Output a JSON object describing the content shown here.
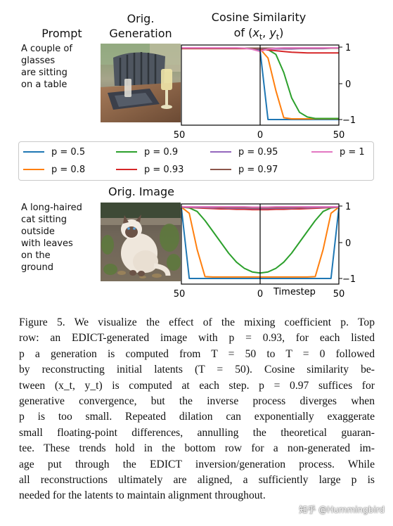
{
  "figure": {
    "row1": {
      "header_prompt": "Prompt",
      "header_image_line1": "Orig.",
      "header_image_line2": "Generation",
      "header_plot_line1": "Cosine Similarity",
      "header_plot_line2": "of (x_t, y_t)",
      "prompt_lines": [
        "A couple of",
        "glasses",
        "are sitting",
        "on a table"
      ],
      "image_icon": "photo-glasses-on-table"
    },
    "row2": {
      "header_image": "Orig. Image",
      "prompt_lines": [
        "A long-haired",
        "cat sitting",
        "outside",
        "with leaves",
        "on the",
        "ground"
      ],
      "image_icon": "photo-long-haired-cat",
      "xlabel": "Timestep"
    },
    "legend": [
      {
        "label": "p = 0.5",
        "color": "#1f77b4"
      },
      {
        "label": "p = 0.9",
        "color": "#2ca02c"
      },
      {
        "label": "p = 0.95",
        "color": "#9467bd"
      },
      {
        "label": "p = 1",
        "color": "#e377c2"
      },
      {
        "label": "p = 0.8",
        "color": "#ff7f0e"
      },
      {
        "label": "p = 0.93",
        "color": "#d62728"
      },
      {
        "label": "p = 0.97",
        "color": "#8c564b"
      }
    ]
  },
  "chart_data": [
    {
      "type": "line",
      "title": "Cosine Similarity of (x_t, y_t)",
      "xlabel": "",
      "ylabel": "",
      "xticks": [
        "50",
        "0",
        "50"
      ],
      "yticks": [
        "1",
        "0",
        "−1"
      ],
      "ylim": [
        -1.1,
        1.05
      ],
      "x": [
        0,
        5,
        10,
        15,
        20,
        25,
        30,
        35,
        40,
        45,
        50,
        55,
        60,
        65,
        70,
        75,
        80,
        85,
        90,
        95,
        100
      ],
      "series": [
        {
          "name": "p = 0.5",
          "color": "#1f77b4",
          "values": [
            0.97,
            0.97,
            0.97,
            0.97,
            0.97,
            0.97,
            0.97,
            0.97,
            0.97,
            0.97,
            0.9,
            -1.0,
            -1.0,
            -1.0,
            -1.0,
            -1.0,
            -1.0,
            -1.0,
            -1.0,
            -1.0,
            -1.0
          ]
        },
        {
          "name": "p = 0.8",
          "color": "#ff7f0e",
          "values": [
            0.97,
            0.97,
            0.97,
            0.97,
            0.97,
            0.97,
            0.97,
            0.97,
            0.97,
            0.97,
            0.95,
            0.7,
            -0.2,
            -0.95,
            -0.98,
            -0.98,
            -0.98,
            -0.98,
            -0.98,
            -0.98,
            -0.98
          ]
        },
        {
          "name": "p = 0.9",
          "color": "#2ca02c",
          "values": [
            0.97,
            0.97,
            0.97,
            0.97,
            0.97,
            0.97,
            0.97,
            0.97,
            0.97,
            0.97,
            0.96,
            0.93,
            0.8,
            0.3,
            -0.4,
            -0.8,
            -0.93,
            -0.97,
            -0.97,
            -0.97,
            -0.97
          ]
        },
        {
          "name": "p = 0.93",
          "color": "#d62728",
          "values": [
            0.96,
            0.96,
            0.96,
            0.96,
            0.96,
            0.96,
            0.96,
            0.96,
            0.96,
            0.96,
            0.95,
            0.92,
            0.9,
            0.88,
            0.86,
            0.85,
            0.84,
            0.84,
            0.84,
            0.84,
            0.84
          ]
        },
        {
          "name": "p = 0.95",
          "color": "#9467bd",
          "values": [
            0.97,
            0.97,
            0.97,
            0.97,
            0.97,
            0.97,
            0.97,
            0.97,
            0.97,
            0.97,
            0.96,
            0.95,
            0.95,
            0.95,
            0.95,
            0.96,
            0.96,
            0.96,
            0.96,
            0.97,
            0.97
          ]
        },
        {
          "name": "p = 0.97",
          "color": "#8c564b",
          "values": [
            0.97,
            0.97,
            0.97,
            0.97,
            0.97,
            0.97,
            0.97,
            0.97,
            0.97,
            0.97,
            0.97,
            0.97,
            0.97,
            0.97,
            0.97,
            0.97,
            0.97,
            0.97,
            0.97,
            0.97,
            0.97
          ]
        },
        {
          "name": "p = 1",
          "color": "#e377c2",
          "values": [
            0.98,
            0.98,
            0.98,
            0.98,
            0.98,
            0.98,
            0.98,
            0.98,
            0.97,
            0.94,
            0.88,
            0.95,
            0.97,
            0.98,
            0.98,
            0.98,
            0.98,
            0.98,
            0.98,
            0.98,
            0.98
          ]
        }
      ]
    },
    {
      "type": "line",
      "title": "",
      "xlabel": "Timestep",
      "ylabel": "",
      "xticks": [
        "50",
        "0",
        "50"
      ],
      "yticks": [
        "1",
        "0",
        "−1"
      ],
      "ylim": [
        -1.1,
        1.05
      ],
      "x": [
        0,
        5,
        10,
        15,
        20,
        25,
        30,
        35,
        40,
        45,
        50,
        55,
        60,
        65,
        70,
        75,
        80,
        85,
        90,
        95,
        100
      ],
      "series": [
        {
          "name": "p = 0.5",
          "color": "#1f77b4",
          "values": [
            0.95,
            -1.0,
            -1.0,
            -1.0,
            -1.0,
            -1.0,
            -1.0,
            -1.0,
            -1.0,
            -1.0,
            -1.0,
            -1.0,
            -1.0,
            -1.0,
            -1.0,
            -1.0,
            -1.0,
            -1.0,
            -1.0,
            -1.0,
            0.95
          ]
        },
        {
          "name": "p = 0.8",
          "color": "#ff7f0e",
          "values": [
            0.97,
            0.8,
            -0.2,
            -0.95,
            -0.96,
            -0.96,
            -0.96,
            -0.96,
            -0.96,
            -0.96,
            -0.96,
            -0.96,
            -0.96,
            -0.96,
            -0.96,
            -0.96,
            -0.96,
            -0.95,
            -0.2,
            0.8,
            0.97
          ]
        },
        {
          "name": "p = 0.9",
          "color": "#2ca02c",
          "values": [
            0.97,
            0.95,
            0.85,
            0.6,
            0.3,
            0.0,
            -0.3,
            -0.55,
            -0.72,
            -0.82,
            -0.85,
            -0.82,
            -0.72,
            -0.55,
            -0.3,
            0.0,
            0.3,
            0.6,
            0.85,
            0.95,
            0.97
          ]
        },
        {
          "name": "p = 0.93",
          "color": "#d62728",
          "values": [
            0.97,
            0.96,
            0.95,
            0.94,
            0.93,
            0.92,
            0.92,
            0.91,
            0.91,
            0.9,
            0.9,
            0.9,
            0.91,
            0.91,
            0.92,
            0.92,
            0.93,
            0.94,
            0.95,
            0.96,
            0.97
          ]
        },
        {
          "name": "p = 0.95",
          "color": "#9467bd",
          "values": [
            0.97,
            0.97,
            0.96,
            0.96,
            0.95,
            0.95,
            0.94,
            0.94,
            0.94,
            0.93,
            0.93,
            0.93,
            0.94,
            0.94,
            0.94,
            0.95,
            0.95,
            0.96,
            0.96,
            0.97,
            0.97
          ]
        },
        {
          "name": "p = 0.97",
          "color": "#8c564b",
          "values": [
            0.98,
            0.98,
            0.97,
            0.97,
            0.97,
            0.96,
            0.96,
            0.96,
            0.96,
            0.95,
            0.95,
            0.95,
            0.96,
            0.96,
            0.96,
            0.96,
            0.97,
            0.97,
            0.97,
            0.98,
            0.98
          ]
        },
        {
          "name": "p = 1",
          "color": "#e377c2",
          "values": [
            0.98,
            0.98,
            0.98,
            0.98,
            0.98,
            0.98,
            0.98,
            0.98,
            0.98,
            0.97,
            0.97,
            0.97,
            0.98,
            0.98,
            0.98,
            0.98,
            0.98,
            0.98,
            0.98,
            0.98,
            0.98
          ]
        }
      ]
    }
  ],
  "caption": {
    "lines": [
      "Figure 5. We visualize the effect of the mixing coefficient p. Top",
      "row: an EDICT-generated image with p = 0.93, for each listed",
      "p a generation is computed from T = 50 to T = 0 followed",
      "by reconstructing initial latents (T = 50). Cosine similarity be-",
      "tween (x_t, y_t) is computed at each step. p = 0.97 suffices for",
      "generative convergence, but the inverse process diverges when",
      "p is too small. Repeated dilation can exponentially exaggerate",
      "small floating-point differences, annulling the theoretical guaran-",
      "tee. These trends hold in the bottom row for a non-generated im-",
      "age put through the EDICT inversion/generation process. While",
      "all reconstructions ultimately are aligned, a sufficiently large p is",
      "needed for the latents to maintain alignment throughout."
    ]
  },
  "watermark": "知乎 @Hummingbird"
}
